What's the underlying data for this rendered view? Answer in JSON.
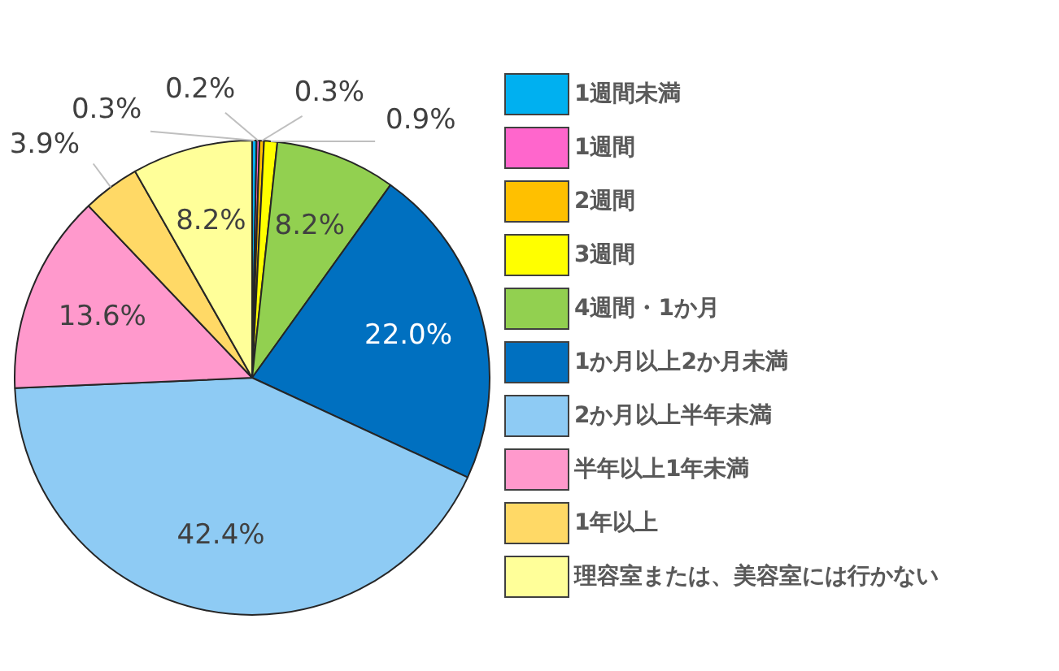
{
  "chart_data": {
    "type": "pie",
    "categories": [
      "1週間未満",
      "1週間",
      "2週間",
      "3週間",
      "4週間・1か月",
      "1か月以上2か月未満",
      "2か月以上半年未満",
      "半年以上1年未満",
      "1年以上",
      "理容室または、美容室には行かない"
    ],
    "values": [
      0.3,
      0.2,
      0.3,
      0.9,
      8.2,
      22.0,
      42.4,
      13.6,
      3.9,
      8.2
    ],
    "value_labels": [
      "0.3%",
      "0.2%",
      "0.3%",
      "0.9%",
      "8.2%",
      "22.0%",
      "42.4%",
      "13.6%",
      "3.9%",
      "8.2%"
    ],
    "colors": [
      "#00b0f0",
      "#ff66cc",
      "#ffc000",
      "#ffff00",
      "#92d050",
      "#0070c0",
      "#8ecbf4",
      "#ff99cc",
      "#ffd966",
      "#ffff99"
    ],
    "legend": "right"
  }
}
